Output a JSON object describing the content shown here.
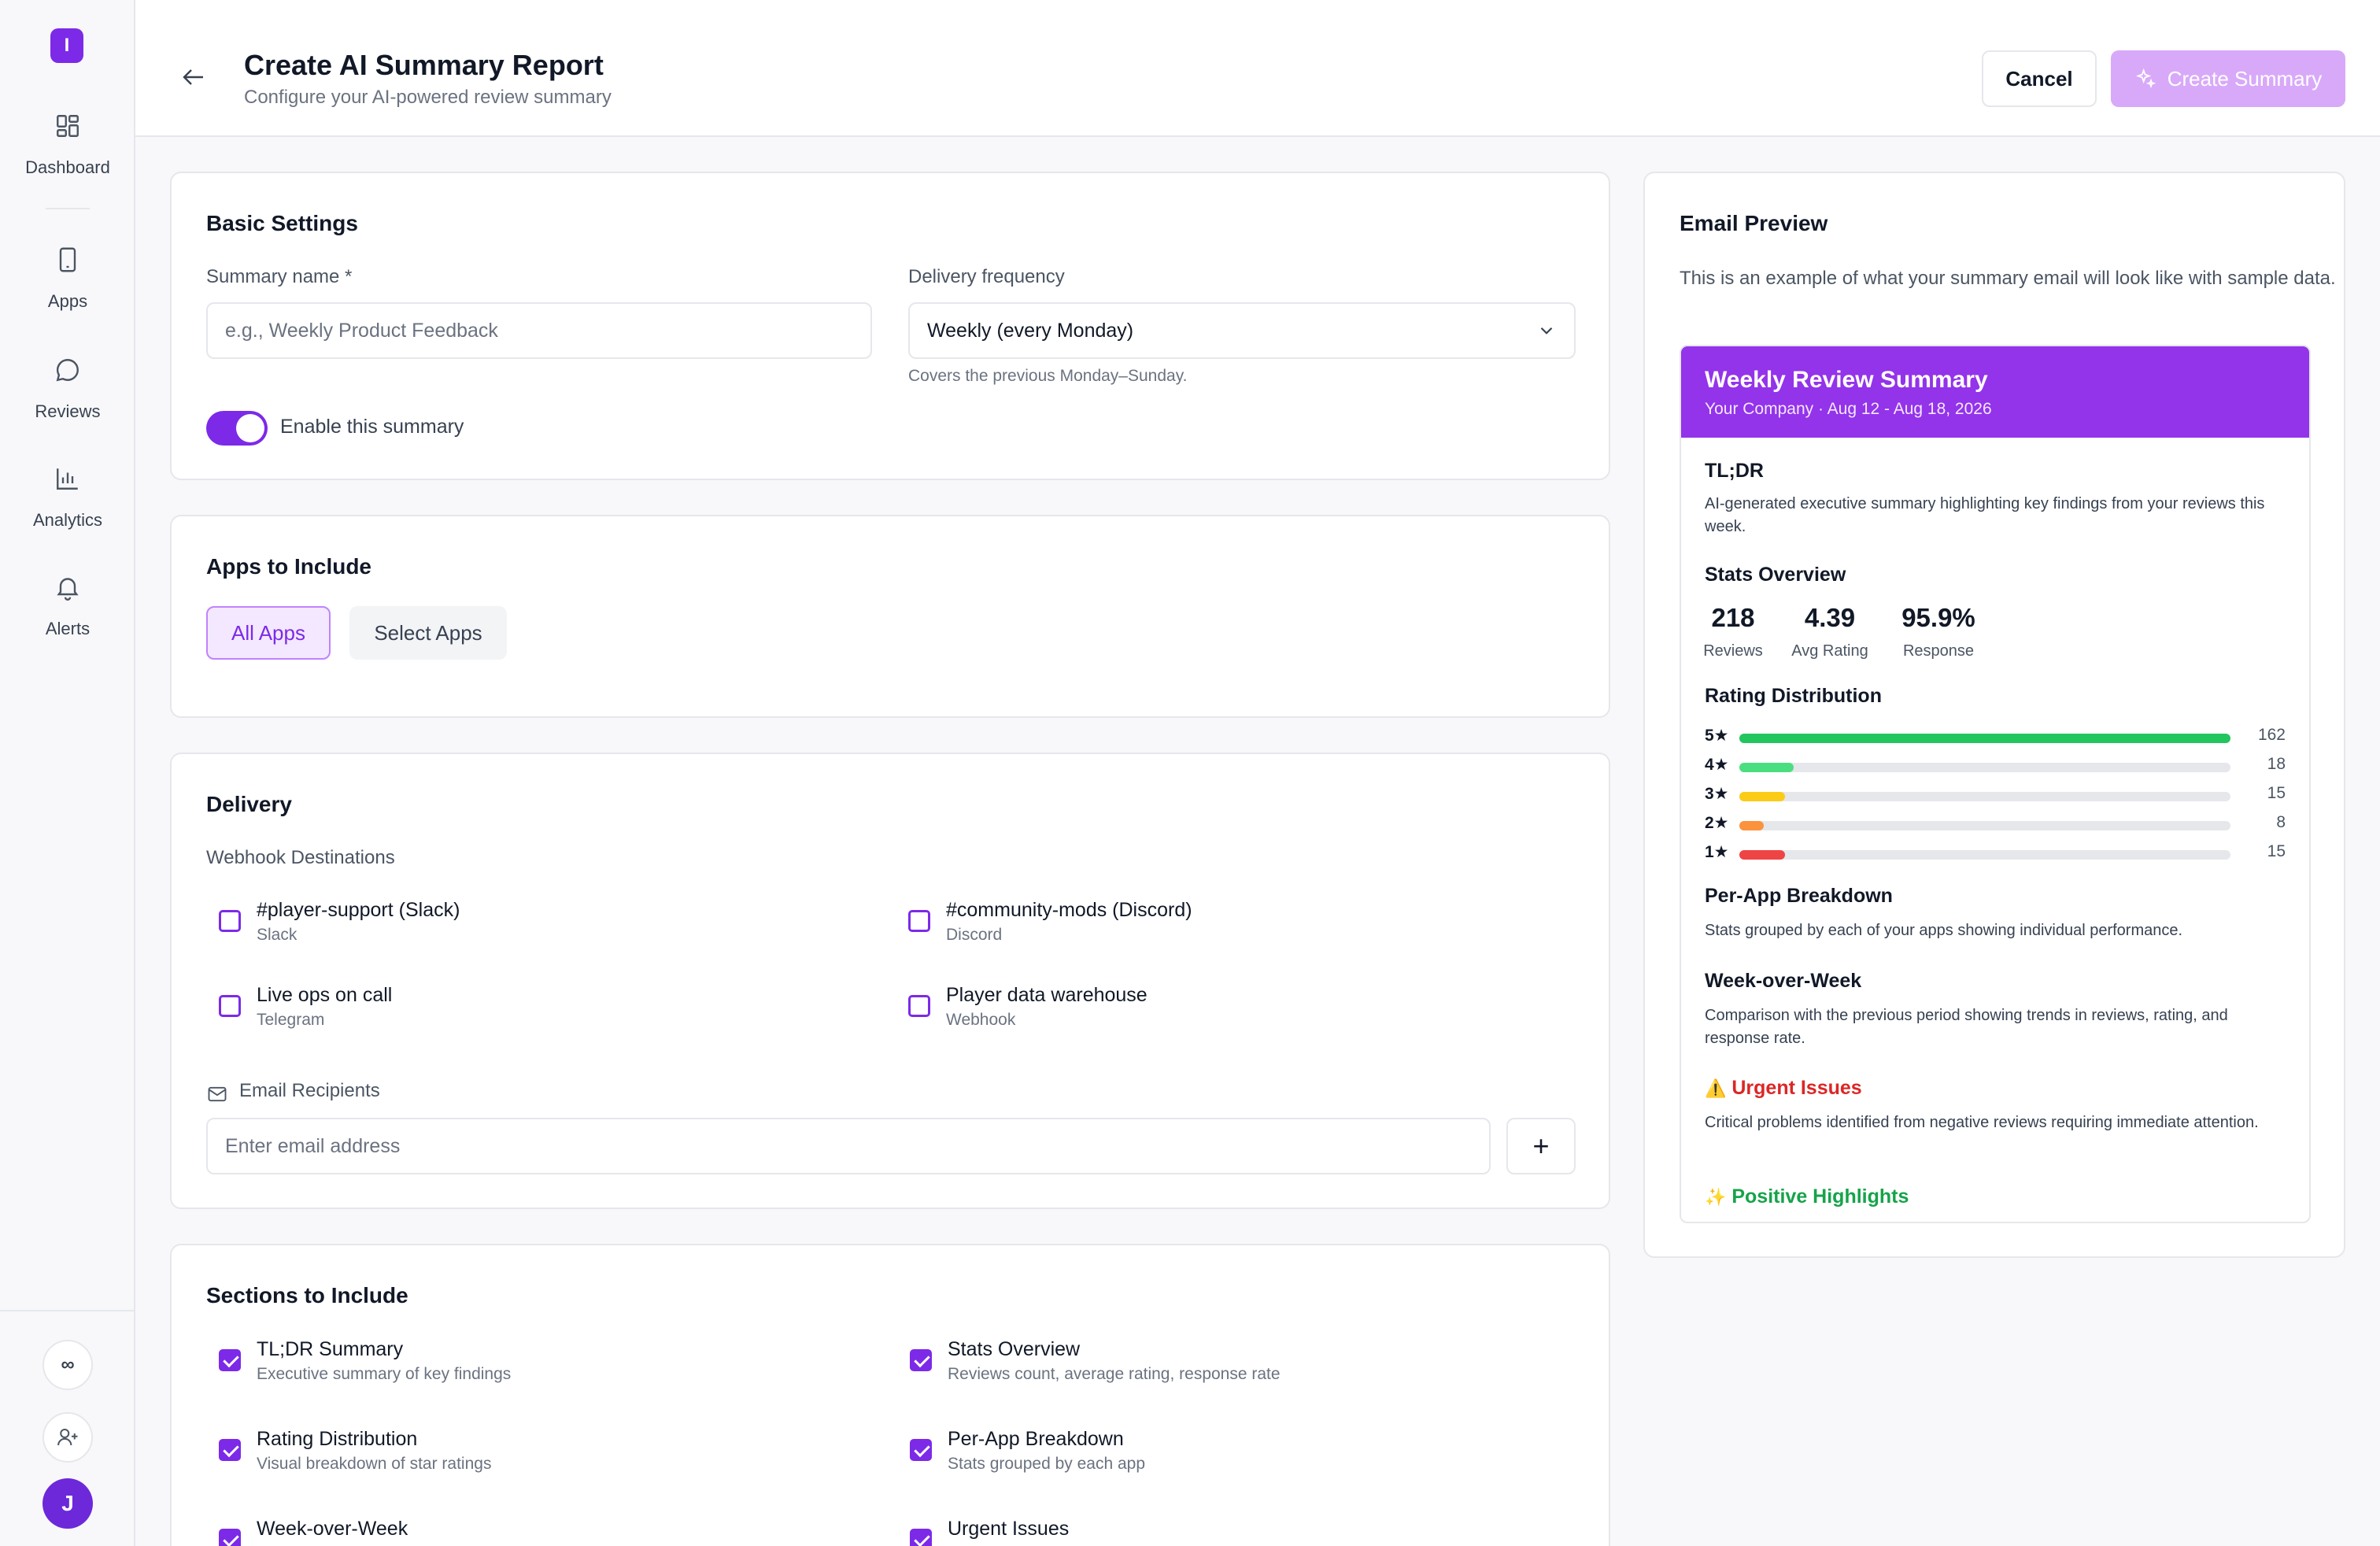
{
  "app": {
    "logo_letter": "I"
  },
  "sidebar": {
    "items": [
      {
        "label": "Dashboard",
        "icon": "grid-icon"
      },
      {
        "label": "Apps",
        "icon": "phone-icon"
      },
      {
        "label": "Reviews",
        "icon": "chat-icon"
      },
      {
        "label": "Analytics",
        "icon": "bar-chart-icon"
      },
      {
        "label": "Alerts",
        "icon": "bell-icon"
      }
    ],
    "bottom": {
      "infinity_label": "∞",
      "avatar_initial": "J"
    }
  },
  "header": {
    "title": "Create AI Summary Report",
    "subtitle": "Configure your AI-powered review summary",
    "cancel_label": "Cancel",
    "create_label": "Create Summary"
  },
  "basic_settings": {
    "title": "Basic Settings",
    "name_label": "Summary name *",
    "name_placeholder": "e.g., Weekly Product Feedback",
    "frequency_label": "Delivery frequency",
    "frequency_value": "Weekly (every Monday)",
    "frequency_hint": "Covers the previous Monday–Sunday.",
    "enable_label": "Enable this summary",
    "enabled": true
  },
  "apps": {
    "title": "Apps to Include",
    "all_label": "All Apps",
    "select_label": "Select Apps"
  },
  "delivery": {
    "title": "Delivery",
    "webhook_label": "Webhook Destinations",
    "webhooks": [
      {
        "name": "#player-support (Slack)",
        "type": "Slack",
        "checked": false
      },
      {
        "name": "#community-mods (Discord)",
        "type": "Discord",
        "checked": false
      },
      {
        "name": "Live ops on call",
        "type": "Telegram",
        "checked": false
      },
      {
        "name": "Player data warehouse",
        "type": "Webhook",
        "checked": false
      }
    ],
    "email_label": "Email Recipients",
    "email_placeholder": "Enter email address",
    "add_label": "+"
  },
  "sections": {
    "title": "Sections to Include",
    "items": [
      {
        "name": "TL;DR Summary",
        "desc": "Executive summary of key findings",
        "checked": true
      },
      {
        "name": "Stats Overview",
        "desc": "Reviews count, average rating, response rate",
        "checked": true
      },
      {
        "name": "Rating Distribution",
        "desc": "Visual breakdown of star ratings",
        "checked": true
      },
      {
        "name": "Per-App Breakdown",
        "desc": "Stats grouped by each app",
        "checked": true
      },
      {
        "name": "Week-over-Week",
        "desc": "",
        "checked": true
      },
      {
        "name": "Urgent Issues",
        "desc": "",
        "checked": true
      }
    ]
  },
  "preview": {
    "title": "Email Preview",
    "desc": "This is an example of what your summary email will look like with sample data.",
    "email": {
      "title": "Weekly Review Summary",
      "subtitle": "Your Company · Aug 12 - Aug 18, 2026",
      "tldr_title": "TL;DR",
      "tldr_text": "AI-generated executive summary highlighting key findings from your reviews this week.",
      "stats_title": "Stats Overview",
      "stats": [
        {
          "value": "218",
          "label": "Reviews"
        },
        {
          "value": "4.39",
          "label": "Avg Rating"
        },
        {
          "value": "95.9%",
          "label": "Response"
        }
      ],
      "dist_title": "Rating Distribution",
      "distribution": [
        {
          "label": "5★",
          "count": 162,
          "color": "#22c55e"
        },
        {
          "label": "4★",
          "count": 18,
          "color": "#4ade80"
        },
        {
          "label": "3★",
          "count": 15,
          "color": "#facc15"
        },
        {
          "label": "2★",
          "count": 8,
          "color": "#fb923c"
        },
        {
          "label": "1★",
          "count": 15,
          "color": "#ef4444"
        }
      ],
      "perapp_title": "Per-App Breakdown",
      "perapp_text": "Stats grouped by each of your apps showing individual performance.",
      "wow_title": "Week-over-Week",
      "wow_text": "Comparison with the previous period showing trends in reviews, rating, and response rate.",
      "urgent_icon": "⚠️",
      "urgent_title": "Urgent Issues",
      "urgent_text": "Critical problems identified from negative reviews requiring immediate attention.",
      "positive_icon": "✨",
      "positive_title": "Positive Highlights"
    }
  },
  "colors": {
    "accent": "#7c2ae8",
    "email_header": "#9333ea",
    "urgent": "#dc2626",
    "positive": "#16a34a"
  }
}
